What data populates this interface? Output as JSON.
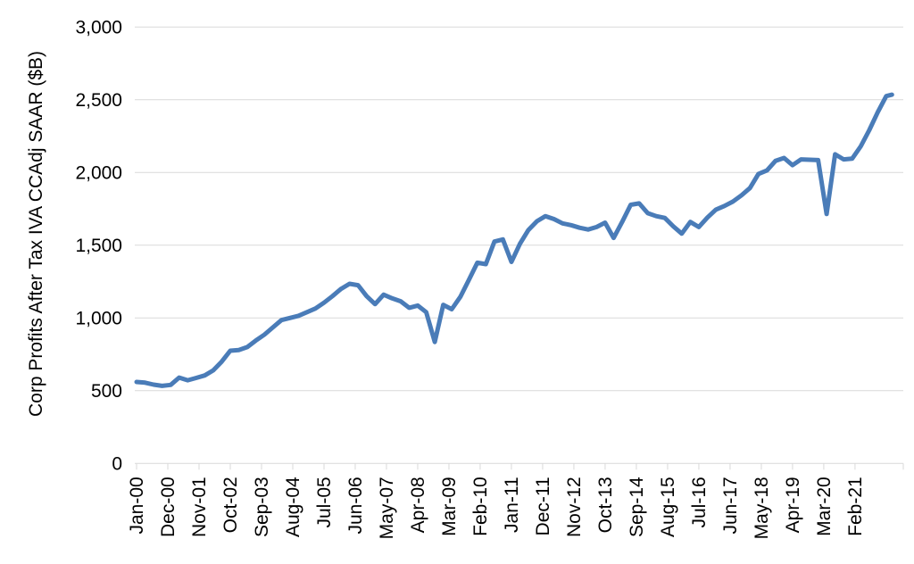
{
  "chart_data": {
    "type": "line",
    "title": "",
    "xlabel": "",
    "ylabel": "Corp Profits After Tax IVA CCAdj SAAR ($B)",
    "ylim": [
      0,
      3000
    ],
    "ytick_step": 500,
    "ytick_labels": [
      "0",
      "500",
      "1,000",
      "1,500",
      "2,000",
      "2,500",
      "3,000"
    ],
    "grid": "horizontal-only",
    "legend_position": "none",
    "x_month_range": [
      0,
      270
    ],
    "xtick_month_index": [
      0,
      11,
      22,
      33,
      44,
      55,
      66,
      77,
      88,
      99,
      110,
      121,
      132,
      143,
      154,
      165,
      176,
      187,
      198,
      209,
      220,
      231,
      242,
      253
    ],
    "xtick_labels": [
      "Jan-00",
      "Dec-00",
      "Nov-01",
      "Oct-02",
      "Sep-03",
      "Aug-04",
      "Jul-05",
      "Jun-06",
      "May-07",
      "Apr-08",
      "Mar-09",
      "Feb-10",
      "Jan-11",
      "Dec-11",
      "Nov-12",
      "Oct-13",
      "Sep-14",
      "Aug-15",
      "Jul-16",
      "Jun-17",
      "May-18",
      "Apr-19",
      "Mar-20",
      "Feb-21"
    ],
    "series": [
      {
        "name": "Corp Profits After Tax IVA CCAdj SAAR ($B)",
        "color": "#4a7cb8",
        "periods": [
          "Jan-00",
          "Apr-00",
          "Jul-00",
          "Oct-00",
          "Jan-01",
          "Apr-01",
          "Jul-01",
          "Oct-01",
          "Jan-02",
          "Apr-02",
          "Jul-02",
          "Oct-02",
          "Jan-03",
          "Apr-03",
          "Jul-03",
          "Oct-03",
          "Jan-04",
          "Apr-04",
          "Jul-04",
          "Oct-04",
          "Jan-05",
          "Apr-05",
          "Jul-05",
          "Oct-05",
          "Jan-06",
          "Apr-06",
          "Jul-06",
          "Oct-06",
          "Jan-07",
          "Apr-07",
          "Jul-07",
          "Oct-07",
          "Jan-08",
          "Apr-08",
          "Jul-08",
          "Oct-08",
          "Jan-09",
          "Apr-09",
          "Jul-09",
          "Oct-09",
          "Jan-10",
          "Apr-10",
          "Jul-10",
          "Oct-10",
          "Jan-11",
          "Apr-11",
          "Jul-11",
          "Oct-11",
          "Jan-12",
          "Apr-12",
          "Jul-12",
          "Oct-12",
          "Jan-13",
          "Apr-13",
          "Jul-13",
          "Oct-13",
          "Jan-14",
          "Apr-14",
          "Jul-14",
          "Oct-14",
          "Jan-15",
          "Apr-15",
          "Jul-15",
          "Oct-15",
          "Jan-16",
          "Apr-16",
          "Jul-16",
          "Oct-16",
          "Jan-17",
          "Apr-17",
          "Jul-17",
          "Oct-17",
          "Jan-18",
          "Apr-18",
          "Jul-18",
          "Oct-18",
          "Jan-19",
          "Apr-19",
          "Jul-19",
          "Oct-19",
          "Jan-20",
          "Apr-20",
          "Jul-20",
          "Oct-20",
          "Jan-21",
          "Apr-21",
          "Jul-21",
          "Oct-21",
          "Jan-22",
          "Mar-22"
        ],
        "month_index": [
          0,
          3,
          6,
          9,
          12,
          15,
          18,
          21,
          24,
          27,
          30,
          33,
          36,
          39,
          42,
          45,
          48,
          51,
          54,
          57,
          60,
          63,
          66,
          69,
          72,
          75,
          78,
          81,
          84,
          87,
          90,
          93,
          96,
          99,
          102,
          105,
          108,
          111,
          114,
          117,
          120,
          123,
          126,
          129,
          132,
          135,
          138,
          141,
          144,
          147,
          150,
          153,
          156,
          159,
          162,
          165,
          168,
          171,
          174,
          177,
          180,
          183,
          186,
          189,
          192,
          195,
          198,
          201,
          204,
          207,
          210,
          213,
          216,
          219,
          222,
          225,
          228,
          231,
          234,
          237,
          240,
          243,
          246,
          249,
          252,
          255,
          258,
          261,
          264,
          266
        ],
        "values": [
          560,
          555,
          542,
          533,
          540,
          590,
          572,
          588,
          605,
          640,
          700,
          775,
          780,
          800,
          845,
          885,
          935,
          985,
          1000,
          1015,
          1040,
          1065,
          1105,
          1150,
          1200,
          1235,
          1225,
          1150,
          1095,
          1160,
          1135,
          1115,
          1070,
          1085,
          1040,
          835,
          1090,
          1060,
          1145,
          1260,
          1380,
          1370,
          1525,
          1540,
          1385,
          1510,
          1605,
          1665,
          1700,
          1680,
          1650,
          1638,
          1620,
          1608,
          1625,
          1655,
          1550,
          1660,
          1778,
          1788,
          1720,
          1700,
          1688,
          1630,
          1580,
          1660,
          1625,
          1690,
          1745,
          1770,
          1800,
          1843,
          1893,
          1990,
          2015,
          2080,
          2100,
          2050,
          2090,
          2088,
          2085,
          1715,
          2125,
          2090,
          2095,
          2180,
          2290,
          2415,
          2525,
          2535
        ]
      }
    ]
  },
  "colors": {
    "line": "#4a7cb8",
    "gridline": "#d9d9d9",
    "tick": "#d9d9d9",
    "axis_text": "#000000",
    "background": "#ffffff"
  }
}
